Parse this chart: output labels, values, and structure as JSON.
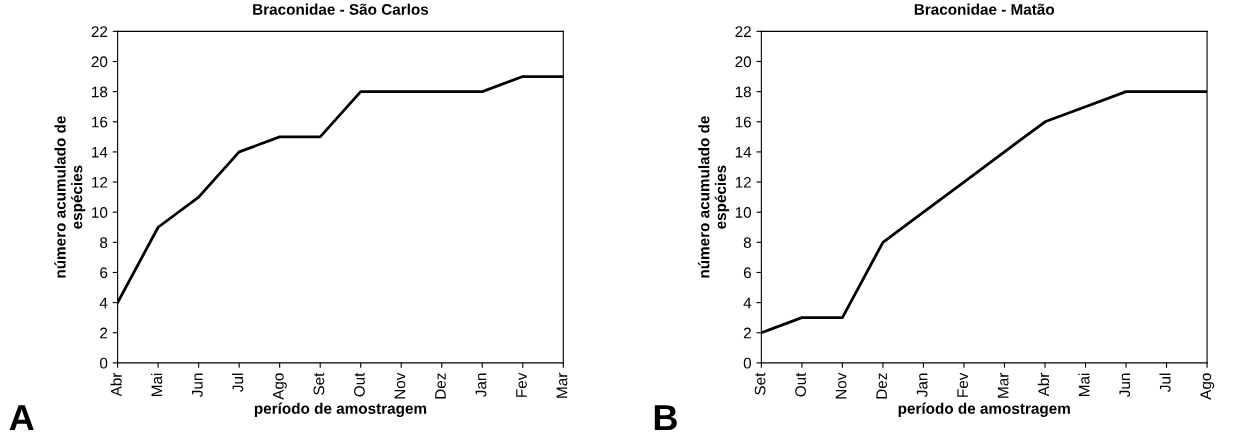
{
  "chart_data": [
    {
      "type": "line",
      "title": "Braconidae - São Carlos",
      "xlabel": "período de amostragem",
      "ylabel": "número acumulado de\nespécies",
      "categories": [
        "Abr",
        "Mai",
        "Jun",
        "Jul",
        "Ago",
        "Set",
        "Out",
        "Nov",
        "Dez",
        "Jan",
        "Fev",
        "Mar"
      ],
      "series": [
        {
          "color": "#000000",
          "values": [
            4,
            9,
            11,
            14,
            15,
            15,
            18,
            18,
            18,
            18,
            19,
            19
          ]
        }
      ],
      "ylim": [
        0,
        22
      ],
      "yticks": [
        0,
        2,
        4,
        6,
        8,
        10,
        12,
        14,
        16,
        18,
        20,
        22
      ],
      "grid": false,
      "legend": false,
      "marker": "none",
      "line_style": "solid",
      "annotations": [
        "A"
      ]
    },
    {
      "type": "line",
      "title": "Braconidae - Matão",
      "xlabel": "período de amostragem",
      "ylabel": "número acumulado de\nespécies",
      "categories": [
        "Set",
        "Out",
        "Nov",
        "Dez",
        "Jan",
        "Fev",
        "Mar",
        "Abr",
        "Mai",
        "Jun",
        "Jul",
        "Ago"
      ],
      "series": [
        {
          "color": "#000000",
          "values": [
            2,
            3,
            3,
            8,
            10,
            12,
            14,
            16,
            17,
            18,
            18,
            18
          ]
        }
      ],
      "ylim": [
        0,
        22
      ],
      "yticks": [
        0,
        2,
        4,
        6,
        8,
        10,
        12,
        14,
        16,
        18,
        20,
        22
      ],
      "grid": false,
      "legend": false,
      "marker": "none",
      "line_style": "solid",
      "annotations": [
        "B"
      ]
    }
  ]
}
